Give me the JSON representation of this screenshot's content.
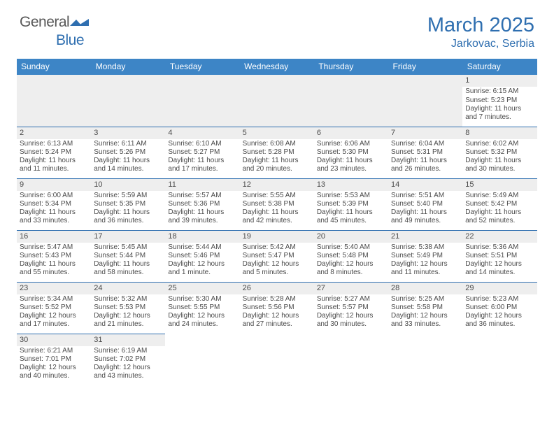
{
  "brand": {
    "part1": "General",
    "part2": "Blue",
    "color1": "#585858",
    "color2": "#2f6fb0"
  },
  "title": {
    "month": "March 2025",
    "location": "Jarkovac, Serbia",
    "color": "#2f6fb0"
  },
  "colors": {
    "header_bg": "#3d85c6",
    "header_fg": "#ffffff",
    "cell_divider": "#2f6fb0",
    "daynum_bg": "#eeeeee",
    "text": "#4a4a4a",
    "background": "#ffffff"
  },
  "weekday_labels": [
    "Sunday",
    "Monday",
    "Tuesday",
    "Wednesday",
    "Thursday",
    "Friday",
    "Saturday"
  ],
  "grid": [
    [
      null,
      null,
      null,
      null,
      null,
      null,
      {
        "n": "1",
        "sr": "Sunrise: 6:15 AM",
        "ss": "Sunset: 5:23 PM",
        "d1": "Daylight: 11 hours",
        "d2": "and 7 minutes."
      }
    ],
    [
      {
        "n": "2",
        "sr": "Sunrise: 6:13 AM",
        "ss": "Sunset: 5:24 PM",
        "d1": "Daylight: 11 hours",
        "d2": "and 11 minutes."
      },
      {
        "n": "3",
        "sr": "Sunrise: 6:11 AM",
        "ss": "Sunset: 5:26 PM",
        "d1": "Daylight: 11 hours",
        "d2": "and 14 minutes."
      },
      {
        "n": "4",
        "sr": "Sunrise: 6:10 AM",
        "ss": "Sunset: 5:27 PM",
        "d1": "Daylight: 11 hours",
        "d2": "and 17 minutes."
      },
      {
        "n": "5",
        "sr": "Sunrise: 6:08 AM",
        "ss": "Sunset: 5:28 PM",
        "d1": "Daylight: 11 hours",
        "d2": "and 20 minutes."
      },
      {
        "n": "6",
        "sr": "Sunrise: 6:06 AM",
        "ss": "Sunset: 5:30 PM",
        "d1": "Daylight: 11 hours",
        "d2": "and 23 minutes."
      },
      {
        "n": "7",
        "sr": "Sunrise: 6:04 AM",
        "ss": "Sunset: 5:31 PM",
        "d1": "Daylight: 11 hours",
        "d2": "and 26 minutes."
      },
      {
        "n": "8",
        "sr": "Sunrise: 6:02 AM",
        "ss": "Sunset: 5:32 PM",
        "d1": "Daylight: 11 hours",
        "d2": "and 30 minutes."
      }
    ],
    [
      {
        "n": "9",
        "sr": "Sunrise: 6:00 AM",
        "ss": "Sunset: 5:34 PM",
        "d1": "Daylight: 11 hours",
        "d2": "and 33 minutes."
      },
      {
        "n": "10",
        "sr": "Sunrise: 5:59 AM",
        "ss": "Sunset: 5:35 PM",
        "d1": "Daylight: 11 hours",
        "d2": "and 36 minutes."
      },
      {
        "n": "11",
        "sr": "Sunrise: 5:57 AM",
        "ss": "Sunset: 5:36 PM",
        "d1": "Daylight: 11 hours",
        "d2": "and 39 minutes."
      },
      {
        "n": "12",
        "sr": "Sunrise: 5:55 AM",
        "ss": "Sunset: 5:38 PM",
        "d1": "Daylight: 11 hours",
        "d2": "and 42 minutes."
      },
      {
        "n": "13",
        "sr": "Sunrise: 5:53 AM",
        "ss": "Sunset: 5:39 PM",
        "d1": "Daylight: 11 hours",
        "d2": "and 45 minutes."
      },
      {
        "n": "14",
        "sr": "Sunrise: 5:51 AM",
        "ss": "Sunset: 5:40 PM",
        "d1": "Daylight: 11 hours",
        "d2": "and 49 minutes."
      },
      {
        "n": "15",
        "sr": "Sunrise: 5:49 AM",
        "ss": "Sunset: 5:42 PM",
        "d1": "Daylight: 11 hours",
        "d2": "and 52 minutes."
      }
    ],
    [
      {
        "n": "16",
        "sr": "Sunrise: 5:47 AM",
        "ss": "Sunset: 5:43 PM",
        "d1": "Daylight: 11 hours",
        "d2": "and 55 minutes."
      },
      {
        "n": "17",
        "sr": "Sunrise: 5:45 AM",
        "ss": "Sunset: 5:44 PM",
        "d1": "Daylight: 11 hours",
        "d2": "and 58 minutes."
      },
      {
        "n": "18",
        "sr": "Sunrise: 5:44 AM",
        "ss": "Sunset: 5:46 PM",
        "d1": "Daylight: 12 hours",
        "d2": "and 1 minute."
      },
      {
        "n": "19",
        "sr": "Sunrise: 5:42 AM",
        "ss": "Sunset: 5:47 PM",
        "d1": "Daylight: 12 hours",
        "d2": "and 5 minutes."
      },
      {
        "n": "20",
        "sr": "Sunrise: 5:40 AM",
        "ss": "Sunset: 5:48 PM",
        "d1": "Daylight: 12 hours",
        "d2": "and 8 minutes."
      },
      {
        "n": "21",
        "sr": "Sunrise: 5:38 AM",
        "ss": "Sunset: 5:49 PM",
        "d1": "Daylight: 12 hours",
        "d2": "and 11 minutes."
      },
      {
        "n": "22",
        "sr": "Sunrise: 5:36 AM",
        "ss": "Sunset: 5:51 PM",
        "d1": "Daylight: 12 hours",
        "d2": "and 14 minutes."
      }
    ],
    [
      {
        "n": "23",
        "sr": "Sunrise: 5:34 AM",
        "ss": "Sunset: 5:52 PM",
        "d1": "Daylight: 12 hours",
        "d2": "and 17 minutes."
      },
      {
        "n": "24",
        "sr": "Sunrise: 5:32 AM",
        "ss": "Sunset: 5:53 PM",
        "d1": "Daylight: 12 hours",
        "d2": "and 21 minutes."
      },
      {
        "n": "25",
        "sr": "Sunrise: 5:30 AM",
        "ss": "Sunset: 5:55 PM",
        "d1": "Daylight: 12 hours",
        "d2": "and 24 minutes."
      },
      {
        "n": "26",
        "sr": "Sunrise: 5:28 AM",
        "ss": "Sunset: 5:56 PM",
        "d1": "Daylight: 12 hours",
        "d2": "and 27 minutes."
      },
      {
        "n": "27",
        "sr": "Sunrise: 5:27 AM",
        "ss": "Sunset: 5:57 PM",
        "d1": "Daylight: 12 hours",
        "d2": "and 30 minutes."
      },
      {
        "n": "28",
        "sr": "Sunrise: 5:25 AM",
        "ss": "Sunset: 5:58 PM",
        "d1": "Daylight: 12 hours",
        "d2": "and 33 minutes."
      },
      {
        "n": "29",
        "sr": "Sunrise: 5:23 AM",
        "ss": "Sunset: 6:00 PM",
        "d1": "Daylight: 12 hours",
        "d2": "and 36 minutes."
      }
    ],
    [
      {
        "n": "30",
        "sr": "Sunrise: 6:21 AM",
        "ss": "Sunset: 7:01 PM",
        "d1": "Daylight: 12 hours",
        "d2": "and 40 minutes."
      },
      {
        "n": "31",
        "sr": "Sunrise: 6:19 AM",
        "ss": "Sunset: 7:02 PM",
        "d1": "Daylight: 12 hours",
        "d2": "and 43 minutes."
      },
      null,
      null,
      null,
      null,
      null
    ]
  ]
}
